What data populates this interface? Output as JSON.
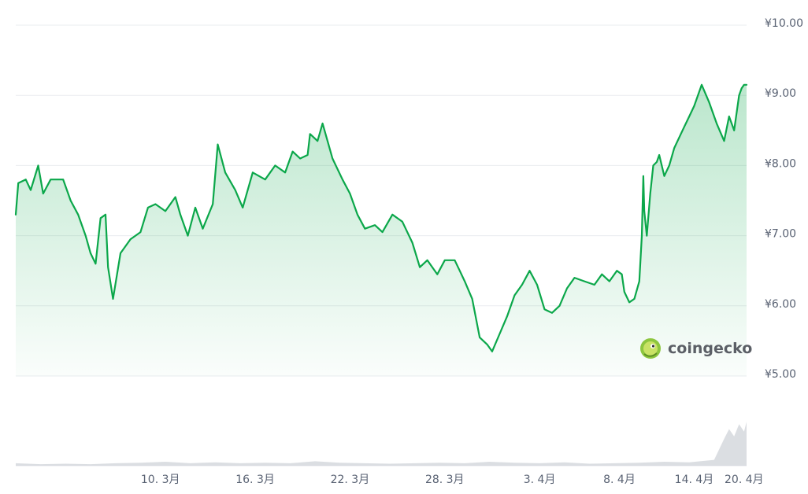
{
  "chart_data": {
    "type": "area",
    "title": "",
    "xlabel": "",
    "ylabel": "",
    "currency_symbol": "¥",
    "ylim": [
      5.0,
      10.0
    ],
    "y_ticks": [
      {
        "value": 10.0,
        "label": "¥10.00"
      },
      {
        "value": 9.0,
        "label": "¥9.00"
      },
      {
        "value": 8.0,
        "label": "¥8.00"
      },
      {
        "value": 7.0,
        "label": "¥7.00"
      },
      {
        "value": 6.0,
        "label": "¥6.00"
      },
      {
        "value": 5.0,
        "label": "¥5.00"
      }
    ],
    "x_range_days": [
      6.0,
      20.65
    ],
    "x_ticks": [
      {
        "day": 8.9,
        "label": "10. 3月"
      },
      {
        "day": 10.8,
        "label": "16. 3月"
      },
      {
        "day": 12.7,
        "label": "22. 3月"
      },
      {
        "day": 14.6,
        "label": "28. 3月"
      },
      {
        "day": 16.5,
        "label": "3. 4月"
      },
      {
        "day": 18.1,
        "label": "8. 4月"
      },
      {
        "day": 19.6,
        "label": "14. 4月"
      },
      {
        "day": 20.6,
        "label": "20. 4月"
      }
    ],
    "grid": true,
    "line_color": "#0ba74a",
    "fill_color": "#0ba74a",
    "volume_color": "#cfd3d8",
    "series": [
      {
        "values": [
          [
            6.0,
            7.3
          ],
          [
            6.05,
            7.75
          ],
          [
            6.2,
            7.8
          ],
          [
            6.3,
            7.65
          ],
          [
            6.45,
            8.0
          ],
          [
            6.55,
            7.6
          ],
          [
            6.7,
            7.8
          ],
          [
            6.95,
            7.8
          ],
          [
            7.1,
            7.5
          ],
          [
            7.25,
            7.3
          ],
          [
            7.4,
            7.0
          ],
          [
            7.5,
            6.75
          ],
          [
            7.6,
            6.6
          ],
          [
            7.7,
            7.25
          ],
          [
            7.8,
            7.3
          ],
          [
            7.85,
            6.55
          ],
          [
            7.95,
            6.1
          ],
          [
            8.1,
            6.75
          ],
          [
            8.3,
            6.95
          ],
          [
            8.5,
            7.05
          ],
          [
            8.65,
            7.4
          ],
          [
            8.8,
            7.45
          ],
          [
            9.0,
            7.35
          ],
          [
            9.2,
            7.55
          ],
          [
            9.3,
            7.3
          ],
          [
            9.45,
            7.0
          ],
          [
            9.6,
            7.4
          ],
          [
            9.75,
            7.1
          ],
          [
            9.95,
            7.45
          ],
          [
            10.05,
            8.3
          ],
          [
            10.2,
            7.9
          ],
          [
            10.4,
            7.65
          ],
          [
            10.55,
            7.4
          ],
          [
            10.75,
            7.9
          ],
          [
            11.0,
            7.8
          ],
          [
            11.2,
            8.0
          ],
          [
            11.4,
            7.9
          ],
          [
            11.55,
            8.2
          ],
          [
            11.7,
            8.1
          ],
          [
            11.85,
            8.15
          ],
          [
            11.9,
            8.45
          ],
          [
            12.05,
            8.35
          ],
          [
            12.15,
            8.6
          ],
          [
            12.25,
            8.35
          ],
          [
            12.35,
            8.1
          ],
          [
            12.55,
            7.8
          ],
          [
            12.7,
            7.6
          ],
          [
            12.85,
            7.3
          ],
          [
            13.0,
            7.1
          ],
          [
            13.2,
            7.15
          ],
          [
            13.35,
            7.05
          ],
          [
            13.55,
            7.3
          ],
          [
            13.75,
            7.2
          ],
          [
            13.95,
            6.9
          ],
          [
            14.1,
            6.55
          ],
          [
            14.25,
            6.65
          ],
          [
            14.45,
            6.45
          ],
          [
            14.6,
            6.65
          ],
          [
            14.8,
            6.65
          ],
          [
            14.9,
            6.5
          ],
          [
            15.0,
            6.35
          ],
          [
            15.15,
            6.1
          ],
          [
            15.3,
            5.55
          ],
          [
            15.45,
            5.45
          ],
          [
            15.55,
            5.35
          ],
          [
            15.7,
            5.6
          ],
          [
            15.85,
            5.85
          ],
          [
            16.0,
            6.15
          ],
          [
            16.15,
            6.3
          ],
          [
            16.3,
            6.5
          ],
          [
            16.45,
            6.3
          ],
          [
            16.6,
            5.95
          ],
          [
            16.75,
            5.9
          ],
          [
            16.9,
            6.0
          ],
          [
            17.05,
            6.25
          ],
          [
            17.2,
            6.4
          ],
          [
            17.4,
            6.35
          ],
          [
            17.6,
            6.3
          ],
          [
            17.75,
            6.45
          ],
          [
            17.9,
            6.35
          ],
          [
            18.05,
            6.5
          ],
          [
            18.15,
            6.45
          ],
          [
            18.2,
            6.2
          ],
          [
            18.3,
            6.05
          ],
          [
            18.4,
            6.1
          ],
          [
            18.5,
            6.35
          ],
          [
            18.55,
            7.0
          ],
          [
            18.58,
            7.85
          ],
          [
            18.6,
            7.35
          ],
          [
            18.65,
            7.0
          ],
          [
            18.72,
            7.6
          ],
          [
            18.78,
            8.0
          ],
          [
            18.85,
            8.05
          ],
          [
            18.9,
            8.15
          ],
          [
            19.0,
            7.85
          ],
          [
            19.1,
            8.0
          ],
          [
            19.2,
            8.25
          ],
          [
            19.3,
            8.4
          ],
          [
            19.4,
            8.55
          ],
          [
            19.5,
            8.7
          ],
          [
            19.6,
            8.85
          ],
          [
            19.75,
            9.15
          ],
          [
            19.9,
            8.9
          ],
          [
            20.05,
            8.6
          ],
          [
            20.2,
            8.35
          ],
          [
            20.3,
            8.7
          ],
          [
            20.4,
            8.5
          ],
          [
            20.5,
            9.0
          ],
          [
            20.55,
            9.1
          ],
          [
            20.6,
            9.15
          ],
          [
            20.65,
            9.15
          ]
        ]
      }
    ],
    "volume": [
      [
        6.0,
        0.05
      ],
      [
        6.5,
        0.03
      ],
      [
        7.0,
        0.04
      ],
      [
        7.5,
        0.03
      ],
      [
        8.0,
        0.05
      ],
      [
        8.5,
        0.06
      ],
      [
        9.0,
        0.08
      ],
      [
        9.5,
        0.05
      ],
      [
        10.0,
        0.07
      ],
      [
        10.5,
        0.05
      ],
      [
        11.0,
        0.06
      ],
      [
        11.5,
        0.05
      ],
      [
        12.0,
        0.09
      ],
      [
        12.5,
        0.06
      ],
      [
        13.0,
        0.05
      ],
      [
        13.5,
        0.04
      ],
      [
        14.0,
        0.05
      ],
      [
        14.5,
        0.06
      ],
      [
        15.0,
        0.05
      ],
      [
        15.5,
        0.08
      ],
      [
        16.0,
        0.06
      ],
      [
        16.5,
        0.05
      ],
      [
        17.0,
        0.07
      ],
      [
        17.5,
        0.04
      ],
      [
        18.0,
        0.05
      ],
      [
        18.5,
        0.06
      ],
      [
        19.0,
        0.08
      ],
      [
        19.5,
        0.07
      ],
      [
        20.0,
        0.12
      ],
      [
        20.2,
        0.55
      ],
      [
        20.3,
        0.75
      ],
      [
        20.4,
        0.6
      ],
      [
        20.5,
        0.85
      ],
      [
        20.6,
        0.7
      ],
      [
        20.65,
        0.9
      ]
    ]
  },
  "watermark": {
    "text": "coingecko",
    "icon": "gecko-icon"
  }
}
